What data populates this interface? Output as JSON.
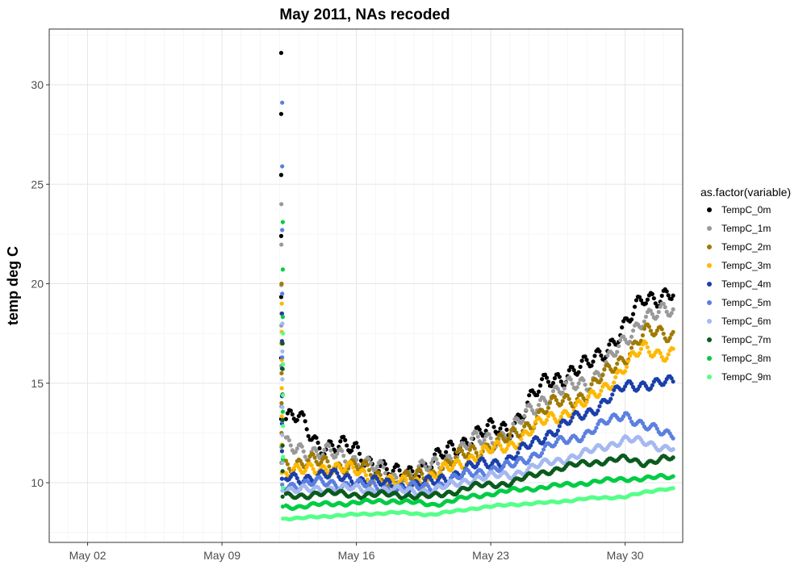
{
  "chart_data": {
    "type": "scatter",
    "title": "May 2011, NAs recoded",
    "xlabel": "",
    "ylabel": "temp deg C",
    "x_ticks": [
      "May 02",
      "May 09",
      "May 16",
      "May 23",
      "May 30"
    ],
    "x_range": [
      "2011-04-30",
      "2011-06-02"
    ],
    "y_ticks": [
      "10",
      "15",
      "20",
      "25",
      "30"
    ],
    "ylim": [
      7.0,
      32.8
    ],
    "grid": true,
    "legend": {
      "title": "as.factor(variable)",
      "placement": "right"
    },
    "categories": [
      "2011-05-12",
      "2011-05-13",
      "2011-05-14",
      "2011-05-16",
      "2011-05-18",
      "2011-05-20",
      "2011-05-22",
      "2011-05-24",
      "2011-05-26",
      "2011-05-28",
      "2011-05-30",
      "2011-05-31",
      "2011-06-01"
    ],
    "series": [
      {
        "name": "TempC_0m",
        "color": "#000000",
        "values": [
          31.6,
          13.2,
          12.0,
          11.6,
          10.3,
          11.0,
          12.4,
          12.8,
          15.2,
          15.8,
          17.8,
          19.3,
          19.5
        ]
      },
      {
        "name": "TempC_1m",
        "color": "#999999",
        "values": [
          24.0,
          11.8,
          11.5,
          11.2,
          10.2,
          10.8,
          12.0,
          12.5,
          14.5,
          15.0,
          17.0,
          18.5,
          18.5
        ]
      },
      {
        "name": "TempC_2m",
        "color": "#a07a00",
        "values": [
          20.0,
          11.0,
          11.0,
          10.8,
          10.0,
          10.5,
          11.6,
          12.2,
          13.8,
          14.5,
          16.4,
          17.5,
          17.5
        ]
      },
      {
        "name": "TempC_3m",
        "color": "#ffb800",
        "values": [
          19.0,
          10.5,
          10.8,
          10.6,
          9.9,
          10.3,
          11.3,
          11.9,
          13.2,
          14.0,
          15.8,
          16.8,
          16.5
        ]
      },
      {
        "name": "TempC_4m",
        "color": "#1b3faa",
        "values": [
          18.5,
          10.2,
          10.4,
          10.2,
          9.8,
          10.0,
          10.8,
          11.2,
          12.5,
          13.5,
          14.8,
          15.0,
          15.0
        ]
      },
      {
        "name": "TempC_5m",
        "color": "#5b7fe0",
        "values": [
          29.1,
          9.9,
          10.0,
          9.9,
          9.7,
          9.8,
          10.5,
          10.8,
          11.8,
          12.5,
          13.5,
          12.8,
          12.5
        ]
      },
      {
        "name": "TempC_6m",
        "color": "#a5b8f0",
        "values": [
          18.0,
          9.6,
          9.7,
          9.7,
          9.6,
          9.6,
          10.2,
          10.4,
          11.0,
          11.5,
          12.2,
          12.0,
          11.8
        ]
      },
      {
        "name": "TempC_7m",
        "color": "#0b5a1e",
        "values": [
          17.0,
          9.3,
          9.5,
          9.4,
          9.4,
          9.3,
          9.8,
          10.0,
          10.6,
          11.0,
          11.2,
          11.0,
          11.2
        ]
      },
      {
        "name": "TempC_8m",
        "color": "#00cc44",
        "values": [
          23.1,
          8.8,
          8.9,
          9.0,
          9.1,
          8.9,
          9.3,
          9.6,
          9.8,
          10.0,
          10.2,
          10.2,
          10.3
        ]
      },
      {
        "name": "TempC_9m",
        "color": "#55ff88",
        "values": [
          17.5,
          8.2,
          8.3,
          8.4,
          8.5,
          8.4,
          8.7,
          8.9,
          9.0,
          9.2,
          9.3,
          9.5,
          9.7
        ]
      }
    ]
  }
}
